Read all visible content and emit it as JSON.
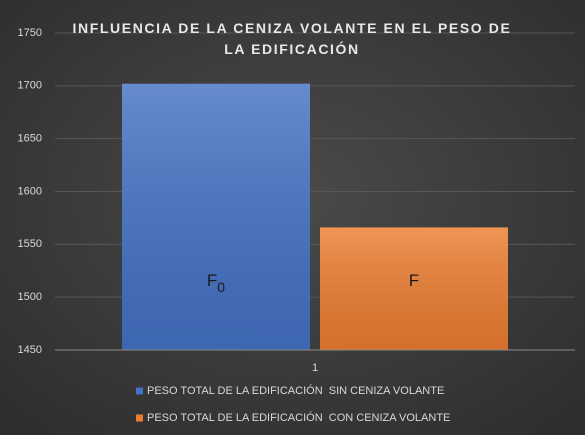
{
  "chart_data": {
    "type": "bar",
    "title": "INFLUENCIA DE LA CENIZA VOLANTE EN EL PESO DE LA EDIFICACIÓN",
    "categories": [
      "1"
    ],
    "series": [
      {
        "name": "PESO TOTAL DE LA EDIFICACIÓN  SIN CENIZA VOLANTE",
        "color": "#4472c4",
        "values": [
          1702
        ]
      },
      {
        "name": "PESO TOTAL DE LA EDIFICACIÓN  CON CENIZA VOLANTE",
        "color": "#ed7d31",
        "values": [
          1566
        ]
      }
    ],
    "annotations": [
      {
        "text": "F",
        "subscript": "0"
      },
      {
        "text": "F"
      }
    ],
    "ylim": [
      1450,
      1750
    ],
    "yticks": [
      1450,
      1500,
      1550,
      1600,
      1650,
      1700,
      1750
    ],
    "grid": true,
    "legend": "bottom"
  }
}
